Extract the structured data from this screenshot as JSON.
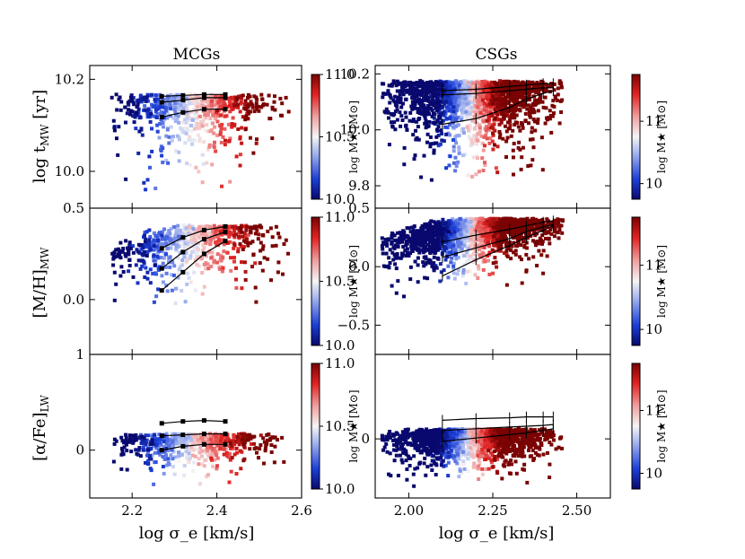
{
  "chart_data": {
    "type": "scatter",
    "columns": [
      {
        "title": "MCGs",
        "xlabel": "log σ_e [km/s]",
        "xlim": [
          2.1,
          2.6
        ],
        "xticks": [
          2.2,
          2.4,
          2.6
        ],
        "xtick_labels": [
          "2.2",
          "2.4",
          "2.6"
        ],
        "colorbar": {
          "label": "log M★ [M⊙]",
          "range": [
            10.0,
            11.0
          ],
          "ticks": [
            10.0,
            10.5,
            11.0
          ],
          "tick_labels": [
            "10.0",
            "10.5",
            "11.0"
          ]
        }
      },
      {
        "title": "CSGs",
        "xlabel": "log σ_e [km/s]",
        "xlim": [
          1.9,
          2.6
        ],
        "xticks": [
          2.0,
          2.25,
          2.5
        ],
        "xtick_labels": [
          "2.00",
          "2.25",
          "2.50"
        ],
        "colorbar": {
          "label": "log M★ [M⊙]",
          "range": [
            9.75,
            11.75
          ],
          "ticks": [
            10,
            11
          ],
          "tick_labels": [
            "10",
            "11"
          ]
        }
      }
    ],
    "rows": [
      {
        "ylabel_main": "log t",
        "ylabel_sub": "MW",
        "ylabel_tail": " [yr]",
        "panels": [
          {
            "ylim": [
              9.92,
              10.23
            ],
            "yticks": [
              10.0,
              10.2
            ],
            "ytick_labels": [
              "10.0",
              "10.2"
            ],
            "scatter": {
              "n": 650,
              "x_center": 2.34,
              "x_spread": 0.09,
              "x_min": 2.15,
              "x_max": 2.57,
              "y_top": 10.165,
              "y_depth": 0.09,
              "y_slope": 0.0,
              "mass_slope": 3.5,
              "seed": 11
            },
            "median": {
              "x": [
                2.27,
                2.32,
                2.37,
                2.42
              ],
              "y": [
                10.15,
                10.155,
                10.16,
                10.16
              ]
            },
            "percentiles": [
              {
                "x": [
                  2.27,
                  2.32,
                  2.37,
                  2.42
                ],
                "y": [
                  10.163,
                  10.165,
                  10.167,
                  10.167
                ]
              },
              {
                "x": [
                  2.27,
                  2.32,
                  2.37,
                  2.42
                ],
                "y": [
                  10.118,
                  10.128,
                  10.135,
                  10.135
                ]
              }
            ]
          },
          {
            "ylim": [
              9.72,
              10.23
            ],
            "yticks": [
              9.8,
              10.0,
              10.2
            ],
            "ytick_labels": [
              "9.8",
              "10.0",
              "10.2"
            ],
            "scatter": {
              "n": 1900,
              "x_center": 2.18,
              "x_spread": 0.12,
              "x_min": 1.92,
              "x_max": 2.46,
              "y_top": 10.17,
              "y_depth": 0.15,
              "y_slope": 0.0,
              "mass_slope": 5.0,
              "seed": 23
            },
            "median": {
              "x": [
                2.1,
                2.2,
                2.3,
                2.35,
                2.4,
                2.43
              ],
              "y": [
                10.125,
                10.13,
                10.14,
                10.145,
                10.15,
                10.15
              ]
            },
            "percentiles": [
              {
                "x": [
                  2.1,
                  2.2,
                  2.3,
                  2.35,
                  2.4,
                  2.43
                ],
                "y": [
                  10.14,
                  10.145,
                  10.155,
                  10.16,
                  10.165,
                  10.165
                ]
              },
              {
                "x": [
                  2.1,
                  2.2,
                  2.3,
                  2.35,
                  2.4,
                  2.43
                ],
                "y": [
                  10.02,
                  10.04,
                  10.08,
                  10.11,
                  10.13,
                  10.14
                ]
              }
            ]
          }
        ]
      },
      {
        "ylabel_main": "[M/H]",
        "ylabel_sub": "MW",
        "ylabel_tail": "",
        "panels": [
          {
            "ylim": [
              -0.3,
              0.5
            ],
            "yticks": [
              0.0,
              0.5
            ],
            "ytick_labels": [
              "0.0",
              "0.5"
            ],
            "scatter": {
              "n": 650,
              "x_center": 2.34,
              "x_spread": 0.09,
              "x_min": 2.15,
              "x_max": 2.57,
              "y_top": 0.4,
              "y_depth": 0.2,
              "y_slope": 1.3,
              "mass_slope": 3.5,
              "seed": 37
            },
            "median": {
              "x": [
                2.27,
                2.32,
                2.37,
                2.42
              ],
              "y": [
                0.17,
                0.26,
                0.33,
                0.37
              ]
            },
            "percentiles": [
              {
                "x": [
                  2.27,
                  2.32,
                  2.37,
                  2.42
                ],
                "y": [
                  0.28,
                  0.34,
                  0.38,
                  0.4
                ]
              },
              {
                "x": [
                  2.27,
                  2.32,
                  2.37,
                  2.42
                ],
                "y": [
                  0.05,
                  0.15,
                  0.25,
                  0.32
                ]
              }
            ]
          },
          {
            "ylim": [
              -0.75,
              0.5
            ],
            "yticks": [
              -0.5,
              0.0,
              0.5
            ],
            "ytick_labels": [
              "−0.5",
              "0.0",
              "0.5"
            ],
            "scatter": {
              "n": 1900,
              "x_center": 2.18,
              "x_spread": 0.12,
              "x_min": 1.92,
              "x_max": 2.46,
              "y_top": 0.4,
              "y_depth": 0.22,
              "y_slope": 1.1,
              "mass_slope": 5.0,
              "seed": 53
            },
            "median": {
              "x": [
                2.1,
                2.2,
                2.3,
                2.35,
                2.4,
                2.43
              ],
              "y": [
                0.08,
                0.16,
                0.24,
                0.3,
                0.34,
                0.36
              ]
            },
            "percentiles": [
              {
                "x": [
                  2.1,
                  2.2,
                  2.3,
                  2.35,
                  2.4,
                  2.43
                ],
                "y": [
                  0.21,
                  0.27,
                  0.32,
                  0.35,
                  0.38,
                  0.39
                ]
              },
              {
                "x": [
                  2.1,
                  2.2,
                  2.3,
                  2.35,
                  2.4,
                  2.43
                ],
                "y": [
                  -0.08,
                  0.06,
                  0.18,
                  0.25,
                  0.31,
                  0.35
                ]
              }
            ]
          }
        ]
      },
      {
        "ylabel_main": "[α/Fe]",
        "ylabel_sub": "LW",
        "ylabel_tail": "",
        "panels": [
          {
            "ylim": [
              -0.5,
              1.0
            ],
            "yticks": [
              0.0,
              1.0
            ],
            "ytick_labels": [
              "0",
              "1"
            ],
            "scatter": {
              "n": 650,
              "x_center": 2.34,
              "x_spread": 0.09,
              "x_min": 2.15,
              "x_max": 2.57,
              "y_top": 0.16,
              "y_depth": 0.22,
              "y_slope": 0.3,
              "mass_slope": 3.5,
              "seed": 71
            },
            "median": {
              "x": [
                2.27,
                2.32,
                2.37,
                2.42
              ],
              "y": [
                0.15,
                0.16,
                0.17,
                0.17
              ]
            },
            "percentiles": [
              {
                "x": [
                  2.27,
                  2.32,
                  2.37,
                  2.42
                ],
                "y": [
                  0.28,
                  0.3,
                  0.31,
                  0.3
                ]
              },
              {
                "x": [
                  2.27,
                  2.32,
                  2.37,
                  2.42
                ],
                "y": [
                  0.0,
                  0.04,
                  0.06,
                  0.06
                ]
              }
            ]
          },
          {
            "ylim": [
              -0.7,
              1.0
            ],
            "yticks": [
              0.0
            ],
            "ytick_labels": [
              "0"
            ],
            "scatter": {
              "n": 1900,
              "x_center": 2.18,
              "x_spread": 0.12,
              "x_min": 1.92,
              "x_max": 2.46,
              "y_top": 0.1,
              "y_depth": 0.25,
              "y_slope": 0.3,
              "mass_slope": 5.0,
              "seed": 89
            },
            "median": {
              "x": [
                2.1,
                2.2,
                2.3,
                2.35,
                2.4,
                2.43
              ],
              "y": [
                0.1,
                0.12,
                0.14,
                0.15,
                0.16,
                0.17
              ]
            },
            "percentiles": [
              {
                "x": [
                  2.1,
                  2.2,
                  2.3,
                  2.35,
                  2.4,
                  2.43
                ],
                "y": [
                  0.22,
                  0.24,
                  0.25,
                  0.26,
                  0.26,
                  0.26
                ]
              },
              {
                "x": [
                  2.1,
                  2.2,
                  2.3,
                  2.35,
                  2.4,
                  2.43
                ],
                "y": [
                  -0.03,
                  0.01,
                  0.05,
                  0.07,
                  0.1,
                  0.12
                ]
              }
            ]
          }
        ]
      }
    ],
    "colors": {
      "colormap": [
        "#08086e",
        "#1c3fd8",
        "#9fb0ee",
        "#f5f5f5",
        "#f0a0a0",
        "#e02222",
        "#7a0303"
      ],
      "line": "#000000"
    }
  }
}
